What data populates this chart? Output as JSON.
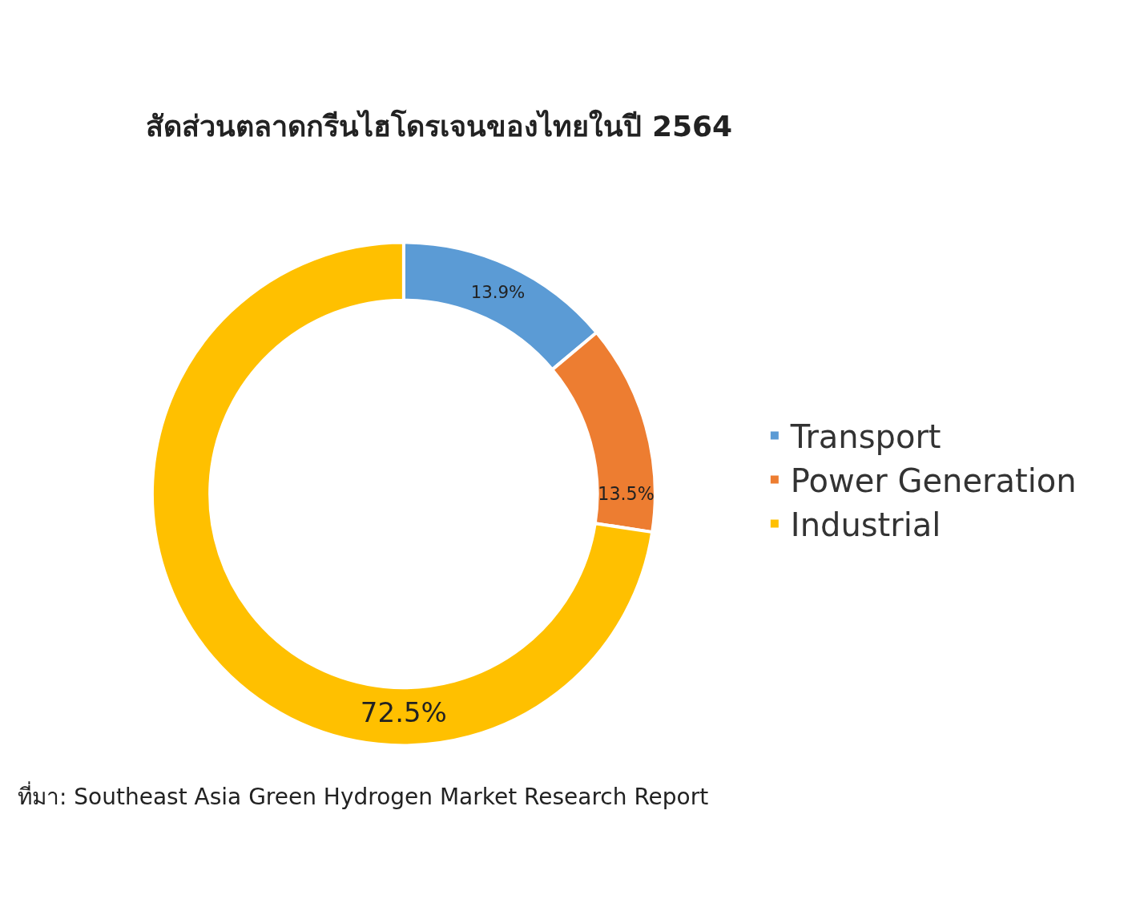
{
  "chart_data": {
    "type": "donut",
    "title": "สัดส่วนตลาดกรีนไฮโดรเจนของไทยในปี 2564",
    "categories": [
      "Transport",
      "Power Generation",
      "Industrial"
    ],
    "values": [
      13.9,
      13.5,
      72.5
    ],
    "colors": [
      "#5b9bd5",
      "#ed7d31",
      "#ffc000"
    ],
    "value_labels": [
      "13.9%",
      "13.5%",
      "72.5%"
    ],
    "legend": "right",
    "annotations": [
      "ที่มา: Southeast Asia Green Hydrogen Market Research Report"
    ]
  }
}
